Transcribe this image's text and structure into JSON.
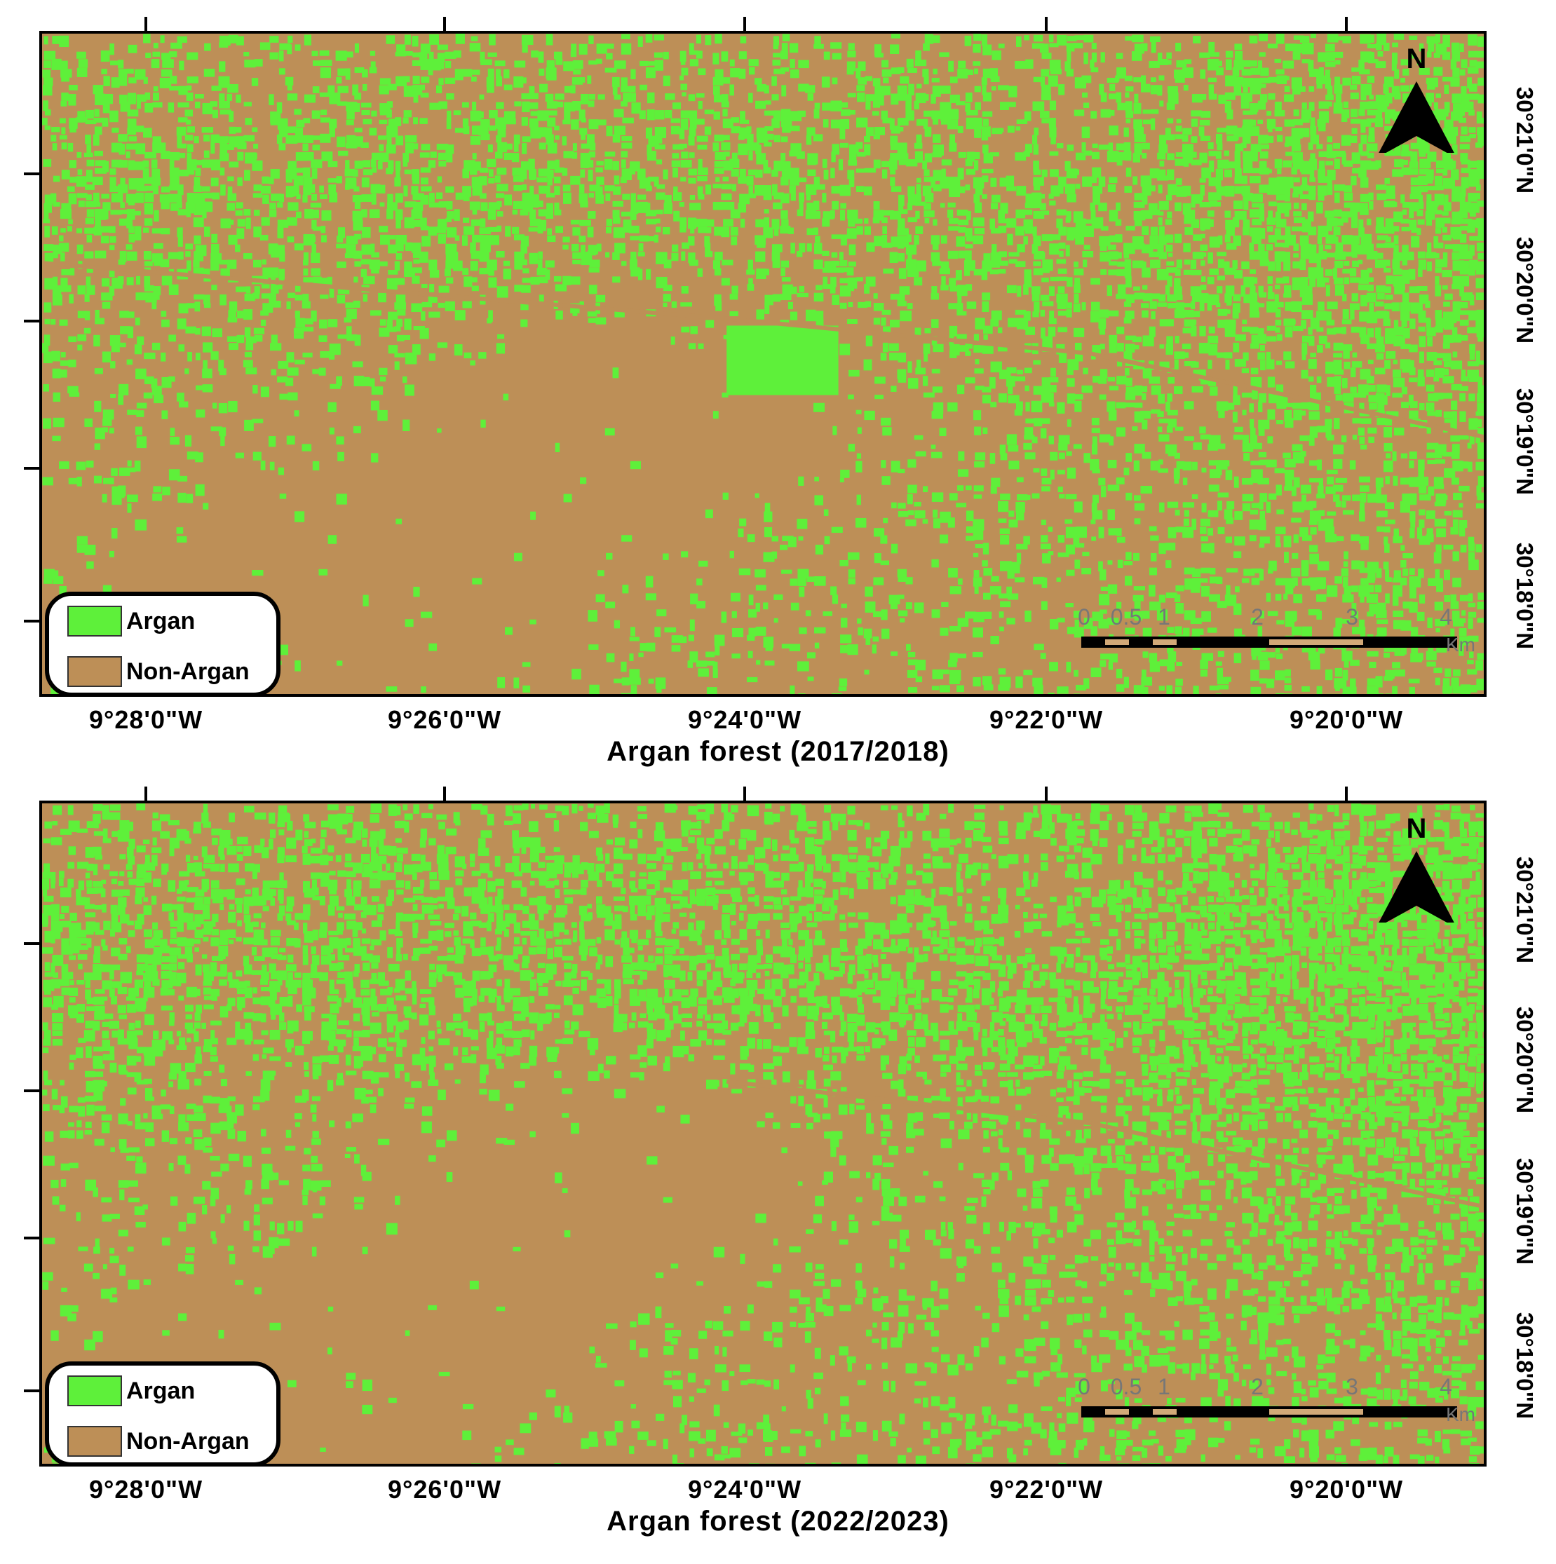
{
  "panels": [
    {
      "title": "Argan forest (2017/2018)",
      "variant": "2017",
      "longitude_labels": [
        "9°28'0\"W",
        "9°26'0\"W",
        "9°24'0\"W",
        "9°22'0\"W",
        "9°20'0\"W"
      ],
      "latitude_labels": [
        "30°21'0\"N",
        "30°20'0\"N",
        "30°19'0\"N",
        "30°18'0\"N"
      ],
      "north_arrow": {
        "letter": "N",
        "icon": "north-arrow-icon"
      },
      "legend": [
        {
          "label": "Argan",
          "color": "#5ef03a"
        },
        {
          "label": "Non-Argan",
          "color": "#bd8f57"
        }
      ],
      "scale_bar": {
        "ticks": [
          "0",
          "0.5",
          "1",
          "2",
          "3",
          "4"
        ],
        "unit": "Km"
      }
    },
    {
      "title": "Argan forest (2022/2023)",
      "variant": "2022",
      "longitude_labels": [
        "9°28'0\"W",
        "9°26'0\"W",
        "9°24'0\"W",
        "9°22'0\"W",
        "9°20'0\"W"
      ],
      "latitude_labels": [
        "30°21'0\"N",
        "30°20'0\"N",
        "30°19'0\"N",
        "30°18'0\"N"
      ],
      "north_arrow": {
        "letter": "N",
        "icon": "north-arrow-icon"
      },
      "legend": [
        {
          "label": "Argan",
          "color": "#5ef03a"
        },
        {
          "label": "Non-Argan",
          "color": "#bd8f57"
        }
      ],
      "scale_bar": {
        "ticks": [
          "0",
          "0.5",
          "1",
          "2",
          "3",
          "4"
        ],
        "unit": "Km"
      }
    }
  ],
  "colors": {
    "argan": "#5ef03a",
    "non_argan": "#bd8f57",
    "frame": "#000000"
  }
}
